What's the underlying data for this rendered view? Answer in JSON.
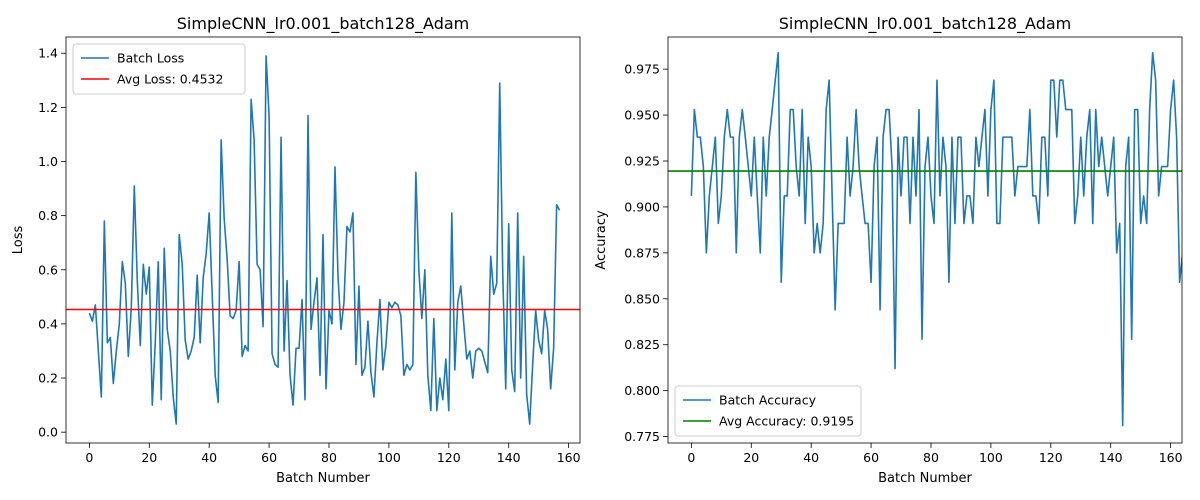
{
  "chart_data": [
    {
      "type": "line",
      "title": "SimpleCNN_lr0.001_batch128_Adam",
      "xlabel": "Batch Number",
      "ylabel": "Loss",
      "xlim": [
        -7.8,
        163.8
      ],
      "ylim": [
        -0.04,
        1.46
      ],
      "xticks": [
        0,
        20,
        40,
        60,
        80,
        100,
        120,
        140,
        160
      ],
      "yticks": [
        0.0,
        0.2,
        0.4,
        0.6,
        0.8,
        1.0,
        1.2,
        1.4
      ],
      "ytick_decimals": 1,
      "grid": false,
      "legend_location": "upper left",
      "series": [
        {
          "name": "Batch Loss",
          "color": "#1f77b4",
          "values": [
            0.44,
            0.41,
            0.47,
            0.3,
            0.13,
            0.78,
            0.33,
            0.35,
            0.18,
            0.3,
            0.4,
            0.63,
            0.55,
            0.28,
            0.46,
            0.91,
            0.56,
            0.32,
            0.62,
            0.51,
            0.61,
            0.1,
            0.33,
            0.63,
            0.12,
            0.68,
            0.38,
            0.3,
            0.13,
            0.03,
            0.73,
            0.62,
            0.34,
            0.27,
            0.3,
            0.35,
            0.58,
            0.33,
            0.57,
            0.66,
            0.81,
            0.51,
            0.21,
            0.11,
            1.08,
            0.79,
            0.64,
            0.43,
            0.42,
            0.45,
            0.63,
            0.28,
            0.32,
            0.3,
            1.23,
            1.08,
            0.62,
            0.6,
            0.39,
            1.39,
            1.17,
            0.29,
            0.25,
            0.24,
            1.09,
            0.3,
            0.56,
            0.21,
            0.1,
            0.31,
            0.31,
            0.49,
            0.12,
            1.17,
            0.38,
            0.48,
            0.57,
            0.21,
            0.73,
            0.16,
            0.45,
            0.4,
            0.98,
            0.58,
            0.38,
            0.48,
            0.76,
            0.74,
            0.81,
            0.25,
            0.54,
            0.21,
            0.24,
            0.41,
            0.22,
            0.13,
            0.33,
            0.49,
            0.23,
            0.32,
            0.48,
            0.46,
            0.48,
            0.47,
            0.43,
            0.21,
            0.25,
            0.23,
            0.25,
            0.96,
            0.6,
            0.42,
            0.6,
            0.21,
            0.08,
            0.42,
            0.08,
            0.2,
            0.12,
            0.27,
            0.08,
            0.81,
            0.23,
            0.48,
            0.54,
            0.4,
            0.27,
            0.3,
            0.2,
            0.3,
            0.31,
            0.3,
            0.26,
            0.22,
            0.65,
            0.51,
            0.55,
            1.29,
            0.59,
            0.16,
            0.77,
            0.23,
            0.15,
            0.81,
            0.2,
            0.65,
            0.14,
            0.03,
            0.25,
            0.45,
            0.34,
            0.29,
            0.45,
            0.38,
            0.16,
            0.31,
            0.84,
            0.82
          ]
        },
        {
          "name": "Avg Loss: 0.4532",
          "color": "#ff0000",
          "kind": "hline",
          "value": 0.4532
        }
      ]
    },
    {
      "type": "line",
      "title": "SimpleCNN_lr0.001_batch128_Adam",
      "xlabel": "Batch Number",
      "ylabel": "Accuracy",
      "xlim": [
        -7.8,
        163.8
      ],
      "ylim": [
        0.7715,
        0.9925
      ],
      "xticks": [
        0,
        20,
        40,
        60,
        80,
        100,
        120,
        140,
        160
      ],
      "yticks": [
        0.775,
        0.8,
        0.825,
        0.85,
        0.875,
        0.9,
        0.925,
        0.95,
        0.975
      ],
      "ytick_decimals": 3,
      "grid": false,
      "legend_location": "lower left",
      "series": [
        {
          "name": "Batch Accuracy",
          "color": "#1f77b4",
          "values": [
            0.906,
            0.953,
            0.938,
            0.938,
            0.922,
            0.875,
            0.906,
            0.922,
            0.938,
            0.891,
            0.906,
            0.938,
            0.953,
            0.938,
            0.938,
            0.875,
            0.938,
            0.953,
            0.938,
            0.922,
            0.906,
            0.938,
            0.906,
            0.875,
            0.938,
            0.906,
            0.938,
            0.953,
            0.969,
            0.984,
            0.859,
            0.906,
            0.906,
            0.953,
            0.953,
            0.922,
            0.906,
            0.953,
            0.891,
            0.938,
            0.922,
            0.875,
            0.891,
            0.875,
            0.891,
            0.953,
            0.969,
            0.906,
            0.844,
            0.891,
            0.891,
            0.891,
            0.938,
            0.906,
            0.922,
            0.953,
            0.922,
            0.906,
            0.891,
            0.891,
            0.859,
            0.922,
            0.938,
            0.844,
            0.938,
            0.953,
            0.953,
            0.922,
            0.812,
            0.938,
            0.906,
            0.938,
            0.938,
            0.891,
            0.938,
            0.906,
            0.953,
            0.828,
            0.922,
            0.938,
            0.906,
            0.891,
            0.969,
            0.906,
            0.938,
            0.922,
            0.859,
            0.938,
            0.891,
            0.938,
            0.938,
            0.891,
            0.906,
            0.906,
            0.891,
            0.938,
            0.922,
            0.938,
            0.953,
            0.906,
            0.953,
            0.969,
            0.891,
            0.891,
            0.938,
            0.938,
            0.938,
            0.938,
            0.906,
            0.922,
            0.922,
            0.922,
            0.922,
            0.953,
            0.906,
            0.906,
            0.891,
            0.938,
            0.938,
            0.906,
            0.969,
            0.969,
            0.938,
            0.969,
            0.969,
            0.953,
            0.953,
            0.953,
            0.891,
            0.906,
            0.938,
            0.906,
            0.938,
            0.953,
            0.891,
            0.953,
            0.922,
            0.938,
            0.922,
            0.906,
            0.922,
            0.938,
            0.875,
            0.891,
            0.781,
            0.922,
            0.938,
            0.828,
            0.953,
            0.953,
            0.891,
            0.906,
            0.891,
            0.953,
            0.984,
            0.969,
            0.906,
            0.922,
            0.922,
            0.922,
            0.953,
            0.969,
            0.938,
            0.859,
            0.875
          ]
        },
        {
          "name": "Avg Accuracy: 0.9195",
          "color": "#008000",
          "kind": "hline",
          "value": 0.9195
        }
      ]
    }
  ]
}
